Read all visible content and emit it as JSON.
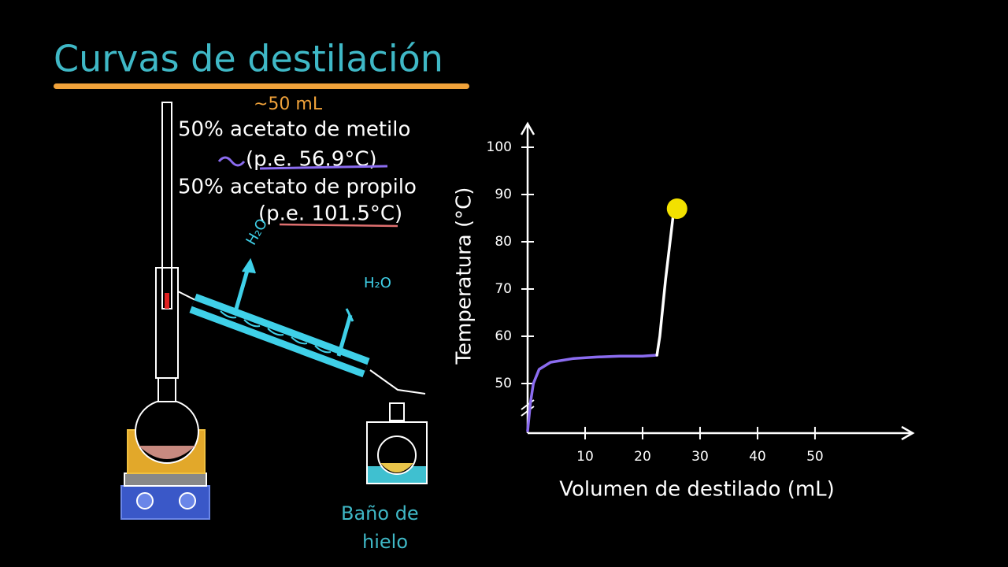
{
  "title": "Curvas de destilación",
  "notes": {
    "volume": "~50 mL",
    "component1": "50% acetato de metilo",
    "bp1": "(p.e. 56.9°C)",
    "component2": "50% acetato de propilo",
    "bp2": "(p.e. 101.5°C)",
    "water_out": "H₂O",
    "water_in": "H₂O",
    "ice_bath_line1": "Baño de",
    "ice_bath_line2": "hielo"
  },
  "chart_data": {
    "type": "line",
    "x_label": "Volumen de destilado (mL)",
    "y_label": "Temperatura (°C)",
    "xlim": [
      0,
      67
    ],
    "ylim": [
      40,
      105
    ],
    "xticks": [
      10,
      20,
      30,
      40,
      50
    ],
    "yticks": [
      50,
      60,
      70,
      80,
      90,
      100
    ],
    "series": [
      {
        "color": "#8b6cf0",
        "x": [
          0,
          0.5,
          1,
          2,
          4,
          8,
          12,
          16,
          20,
          22.5
        ],
        "values": [
          40,
          46,
          50,
          53,
          54.5,
          55.3,
          55.6,
          55.8,
          55.8,
          56
        ]
      },
      {
        "color": "#ffffff",
        "x": [
          22.5,
          23,
          24,
          25.3
        ],
        "values": [
          56,
          60,
          72,
          85.3
        ]
      }
    ],
    "marker": {
      "x": 26,
      "y": 87,
      "color": "#f2e100"
    }
  }
}
